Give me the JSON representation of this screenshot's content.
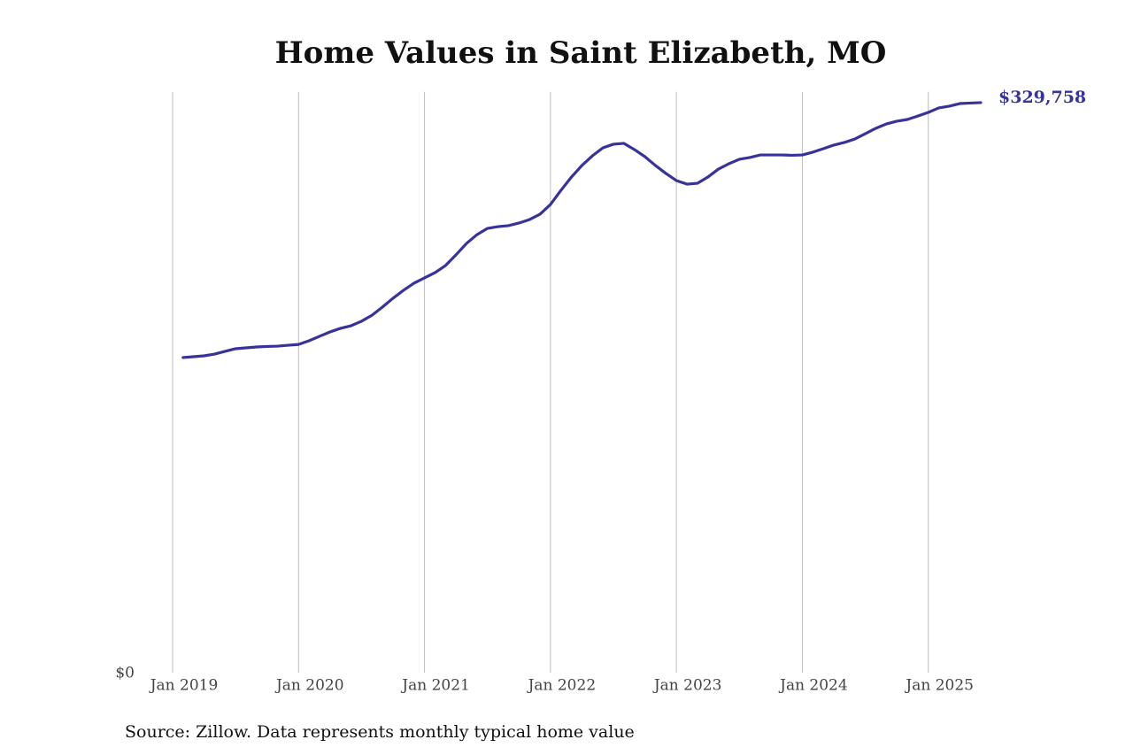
{
  "chart_data": {
    "type": "line",
    "title": "Home Values in Saint Elizabeth, MO",
    "source": "Source: Zillow. Data represents monthly typical home value",
    "x": [
      "2019-02",
      "2019-03",
      "2019-04",
      "2019-05",
      "2019-06",
      "2019-07",
      "2019-08",
      "2019-09",
      "2019-10",
      "2019-11",
      "2019-12",
      "2020-01",
      "2020-02",
      "2020-03",
      "2020-04",
      "2020-05",
      "2020-06",
      "2020-07",
      "2020-08",
      "2020-09",
      "2020-10",
      "2020-11",
      "2020-12",
      "2021-01",
      "2021-02",
      "2021-03",
      "2021-04",
      "2021-05",
      "2021-06",
      "2021-07",
      "2021-08",
      "2021-09",
      "2021-10",
      "2021-11",
      "2021-12",
      "2022-01",
      "2022-02",
      "2022-03",
      "2022-04",
      "2022-05",
      "2022-06",
      "2022-07",
      "2022-08",
      "2022-09",
      "2022-10",
      "2022-11",
      "2022-12",
      "2023-01",
      "2023-02",
      "2023-03",
      "2023-04",
      "2023-05",
      "2023-06",
      "2023-07",
      "2023-08",
      "2023-09",
      "2023-10",
      "2023-11",
      "2023-12",
      "2024-01",
      "2024-02",
      "2024-03",
      "2024-04",
      "2024-05",
      "2024-06",
      "2024-07",
      "2024-08",
      "2024-09",
      "2024-10",
      "2024-11",
      "2024-12",
      "2025-01",
      "2025-02",
      "2025-03",
      "2025-04",
      "2025-05",
      "2025-06"
    ],
    "series": [
      {
        "name": "Typical home value",
        "color": "#37339a",
        "values": [
          182300,
          182800,
          183300,
          184300,
          185900,
          187400,
          187900,
          188400,
          188700,
          188900,
          189400,
          189900,
          192000,
          194600,
          197100,
          199200,
          200700,
          203300,
          206800,
          211500,
          216600,
          221200,
          225300,
          228400,
          231400,
          235500,
          241700,
          248300,
          253400,
          257000,
          258000,
          258600,
          260100,
          262100,
          265200,
          270800,
          279000,
          286700,
          293400,
          299000,
          303600,
          305700,
          306200,
          302600,
          298500,
          293400,
          288800,
          284700,
          282600,
          283100,
          286700,
          291300,
          294400,
          297000,
          298000,
          299500,
          299500,
          299500,
          299300,
          299500,
          301100,
          303100,
          305200,
          306700,
          308700,
          311800,
          314900,
          317400,
          319000,
          320000,
          322000,
          324100,
          326700,
          327700,
          329200,
          329500,
          329758
        ],
        "value_labels": [
          null,
          null,
          null,
          null,
          null,
          null,
          null,
          null,
          null,
          null,
          null,
          null,
          null,
          null,
          null,
          null,
          null,
          null,
          null,
          null,
          null,
          null,
          null,
          null,
          null,
          null,
          null,
          null,
          null,
          null,
          null,
          null,
          null,
          null,
          null,
          null,
          null,
          null,
          null,
          null,
          null,
          null,
          null,
          null,
          null,
          null,
          null,
          null,
          null,
          null,
          null,
          null,
          null,
          null,
          null,
          null,
          null,
          null,
          null,
          null,
          null,
          null,
          null,
          null,
          null,
          null,
          null,
          null,
          null,
          null,
          null,
          null,
          null,
          null,
          null,
          null,
          "$329,758"
        ]
      }
    ],
    "xlim": [
      "2019-01",
      "2026-01"
    ],
    "xticks": [
      {
        "value": "2019-01",
        "label": "Jan 2019"
      },
      {
        "value": "2020-01",
        "label": "Jan 2020"
      },
      {
        "value": "2021-01",
        "label": "Jan 2021"
      },
      {
        "value": "2022-01",
        "label": "Jan 2022"
      },
      {
        "value": "2023-01",
        "label": "Jan 2023"
      },
      {
        "value": "2024-01",
        "label": "Jan 2024"
      },
      {
        "value": "2025-01",
        "label": "Jan 2025"
      }
    ],
    "ylim": [
      0,
      336000
    ],
    "yticks": [
      {
        "value": 0,
        "label": "$0"
      }
    ],
    "grid": "x"
  }
}
